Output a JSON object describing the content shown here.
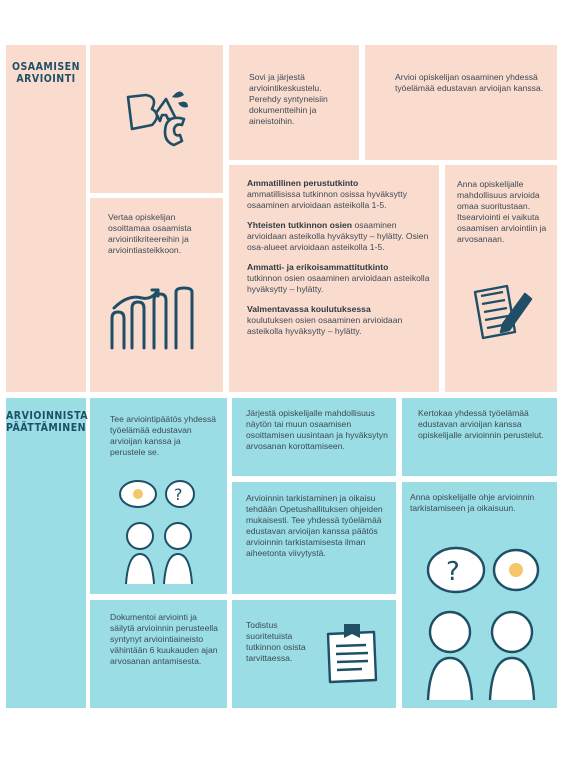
{
  "sections": {
    "assessment": {
      "title_line1": "OSAAMISEN",
      "title_line2": "ARVIOINTI"
    },
    "decision": {
      "title_line1": "ARVIOINNISTA",
      "title_line2": "PÄÄTTÄMINEN"
    }
  },
  "assessment_cells": {
    "agree": "Sovi ja järjestä arviointikeskustelu. Perehdy syntyneisiin dokumentteihin ja aineistoihin.",
    "assess": "Arvioi opiskelijan osaaminen yhdessä työelämää edustavan arvioijan kanssa.",
    "compare": "Vertaa opiskelijan osoittamaa osaamista arviointikriteereihin ja arviointiasteikkoon.",
    "self": "Anna opiskelijalle mahdollisuus arvioida omaa suoritustaan. Itsearviointi ei vaikuta osaamisen arviointiin ja arvosanaan.",
    "scales": [
      {
        "title": "Ammatillinen perustutkinto",
        "text": "ammatillisissa tutkinnon osissa hyväksytty osaaminen arvioidaan asteikolla 1-5."
      },
      {
        "title": "Yhteisten tutkinnon osien",
        "text": "osaaminen arvioidaan asteikolla hyväksytty – hylätty. Osien osa-alueet arvioidaan asteikolla 1-5."
      },
      {
        "title": "Ammatti- ja erikoisammattitutkinto",
        "text": "tutkinnon osien osaaminen arvioidaan asteikolla hyväksytty – hylätty."
      },
      {
        "title": "Valmentavassa koulutuksessa",
        "text": "koulutuksen osien osaaminen arvioidaan asteikolla hyväksytty – hylätty."
      }
    ]
  },
  "decision_cells": {
    "decide": "Tee arviointipäätös yhdessä työelämää edustavan arvioijan kanssa ja perustele se.",
    "opportunity": "Järjestä opiskelijalle mahdollisuus näytön tai muun osaamisen osoittamisen uusintaan ja hyväksytyn arvosanan korottamiseen.",
    "tell": "Kertokaa yhdessä työelämää edustavan arvioijan kanssa opiskelijalle arvioinnin perustelut.",
    "review": "Arvioinnin tarkistaminen ja oikaisu tehdään Opetushallituksen ohjeiden mukaisesti. Tee yhdessä työelämää edustavan arvioijan kanssa päätös arvioinnin tarkistamisesta ilman aiheetonta viivytystä.",
    "guide": "Anna opiskelijalle ohje arvioinnin tarkistamiseen ja oikaisuun.",
    "document": "Dokumentoi arviointi ja säilytä arvioinnin perusteella syntynyt arviointiaineisto vähintään 6 kuukauden ajan arvosanan antamisesta.",
    "certificate": "Todistus suoritetuista tutkinnon osista tarvittaessa."
  },
  "icons": [
    "abc-letters-icon",
    "bar-chart-icon",
    "clipboard-pencil-icon",
    "thinking-people-icon",
    "certificate-icon"
  ],
  "colors": {
    "peach": "#fadccf",
    "cyan": "#9adde5",
    "ink": "#1e4f66"
  }
}
